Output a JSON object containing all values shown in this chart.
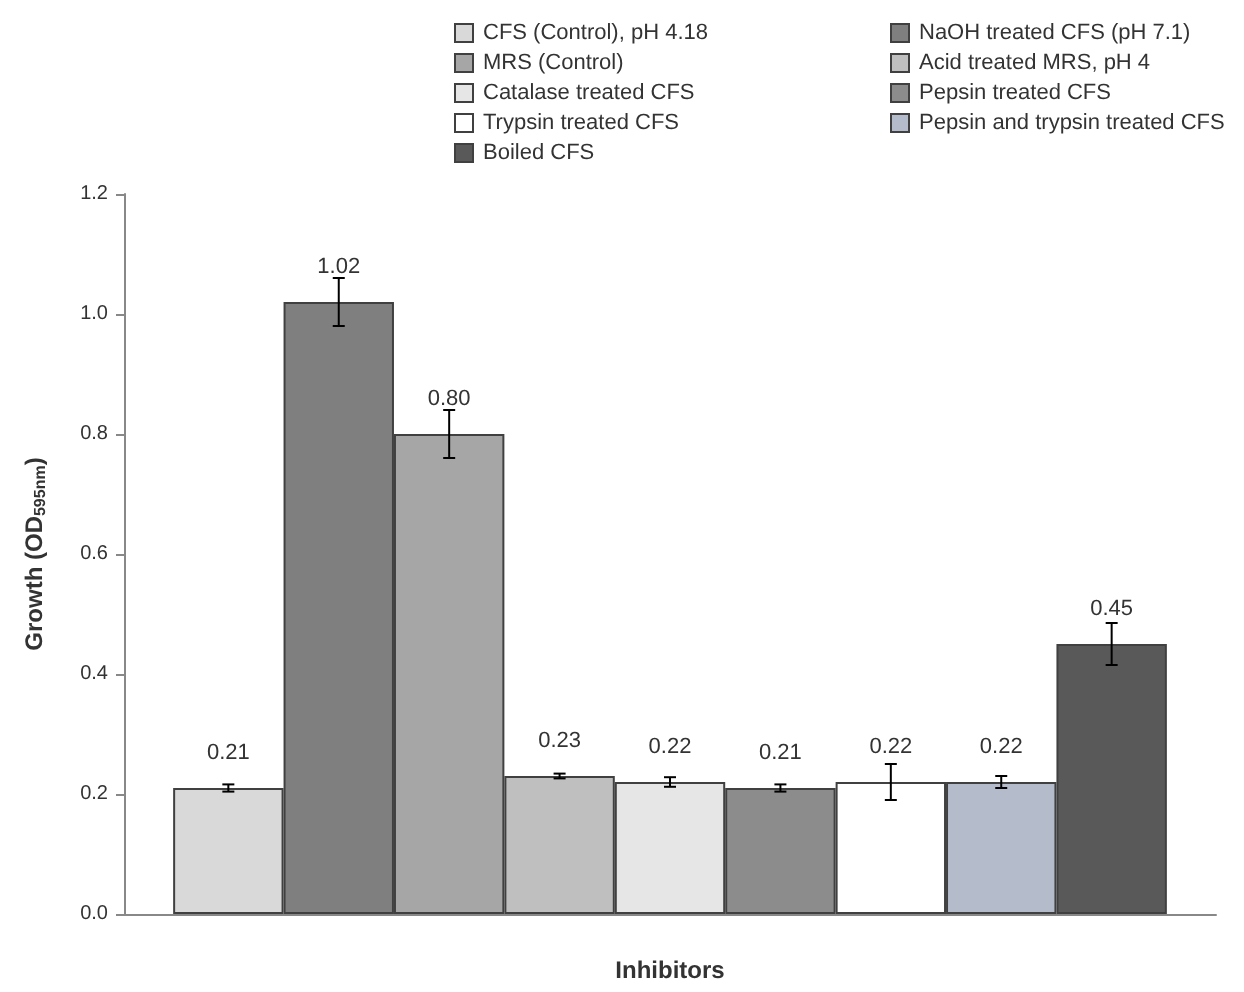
{
  "chart_data": {
    "type": "bar",
    "xlabel": "Inhibitors",
    "ylabel": "Growth (OD$_{595nm}$)",
    "categories": [
      null
    ],
    "series": [
      {
        "name": "CFS (Control), pH 4.18",
        "color": "#d9d9d9",
        "values": [
          0.21
        ],
        "errors": [
          0.006
        ],
        "value_labels": [
          "0.21"
        ]
      },
      {
        "name": "NaOH treated CFS (pH 7.1)",
        "color": "#7f7f7f",
        "values": [
          1.02
        ],
        "errors": [
          0.04
        ],
        "value_labels": [
          "1.02"
        ]
      },
      {
        "name": "MRS (Control)",
        "color": "#a6a6a6",
        "values": [
          0.8
        ],
        "errors": [
          0.04
        ],
        "value_labels": [
          "0.80"
        ]
      },
      {
        "name": "Acid treated MRS, pH 4",
        "color": "#bfbfbf",
        "values": [
          0.23
        ],
        "errors": [
          0.004
        ],
        "value_labels": [
          "0.23"
        ]
      },
      {
        "name": "Catalase treated CFS",
        "color": "#e6e6e6",
        "values": [
          0.22
        ],
        "errors": [
          0.008
        ],
        "value_labels": [
          "0.22"
        ]
      },
      {
        "name": "Pepsin treated CFS",
        "color": "#8c8c8c",
        "values": [
          0.21
        ],
        "errors": [
          0.006
        ],
        "value_labels": [
          "0.21"
        ]
      },
      {
        "name": "Trypsin treated CFS",
        "color": "#ffffff",
        "values": [
          0.22
        ],
        "errors": [
          0.03
        ],
        "value_labels": [
          "0.22"
        ]
      },
      {
        "name": "Pepsin and trypsin treated CFS",
        "color": "#b4bccc",
        "values": [
          0.22
        ],
        "errors": [
          0.01
        ],
        "value_labels": [
          "0.22"
        ]
      },
      {
        "name": "Boiled CFS",
        "color": "#595959",
        "values": [
          0.45
        ],
        "errors": [
          0.035
        ],
        "value_labels": [
          "0.45"
        ]
      }
    ],
    "ylim": [
      0,
      1.2
    ],
    "yticks": [
      {
        "value": 0,
        "label": "0.0"
      },
      {
        "value": 0.2,
        "label": "0.2"
      },
      {
        "value": 0.4,
        "label": "0.4"
      },
      {
        "value": 0.6,
        "label": "0.6"
      },
      {
        "value": 0.8,
        "label": "0.8"
      },
      {
        "value": 1,
        "label": "1.0"
      },
      {
        "value": 1.2,
        "label": "1.2"
      }
    ],
    "grid": false,
    "legend": "top"
  }
}
